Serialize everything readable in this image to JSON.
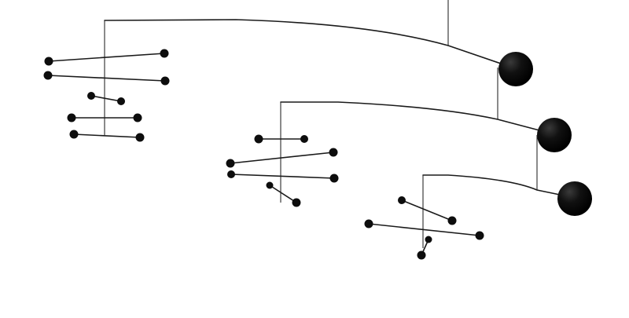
{
  "image": {
    "subject": "hanging-mobile-sculpture",
    "background_color": "#ffffff",
    "object_color": "#0d0d0d"
  }
}
